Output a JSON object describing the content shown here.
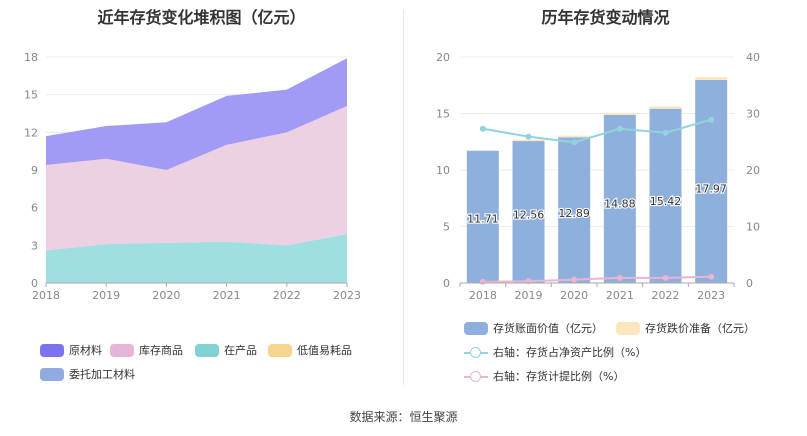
{
  "footer": {
    "source": "数据来源：恒生聚源"
  },
  "chart_data": [
    {
      "type": "area",
      "stacked": true,
      "title": "近年存货变化堆积图（亿元）",
      "categories": [
        "2018",
        "2019",
        "2020",
        "2021",
        "2022",
        "2023"
      ],
      "ylim": [
        0,
        18
      ],
      "yticks": [
        0,
        3,
        6,
        9,
        12,
        15,
        18
      ],
      "grid": true,
      "series": [
        {
          "name": "在产品",
          "color": "#9fdfe0",
          "values": [
            2.6,
            3.1,
            3.2,
            3.3,
            3.0,
            3.9
          ]
        },
        {
          "name": "库存商品",
          "color": "#eed0e3",
          "values": [
            6.8,
            6.8,
            5.8,
            7.7,
            9.0,
            10.2
          ]
        },
        {
          "name": "原材料",
          "color": "#a19bf5",
          "values": [
            2.3,
            2.6,
            3.8,
            3.9,
            3.4,
            3.8
          ]
        }
      ],
      "legend": [
        {
          "name": "原材料",
          "color": "#7b72ee"
        },
        {
          "name": "库存商品",
          "color": "#e4b5d8"
        },
        {
          "name": "在产品",
          "color": "#7fd3d4"
        },
        {
          "name": "低值易耗品",
          "color": "#f6d58f"
        },
        {
          "name": "委托加工材料",
          "color": "#8fabe0"
        }
      ]
    },
    {
      "type": "bar",
      "title": "历年存货变动情况",
      "categories": [
        "2018",
        "2019",
        "2020",
        "2021",
        "2022",
        "2023"
      ],
      "ylim": [
        0,
        20
      ],
      "yticks": [
        0,
        5,
        10,
        15,
        20
      ],
      "y2lim": [
        0,
        40
      ],
      "y2ticks": [
        0,
        10,
        20,
        30,
        40
      ],
      "grid": true,
      "series": [
        {
          "name": "存货账面价值（亿元）",
          "color": "#8fb0dc",
          "values": [
            11.71,
            12.56,
            12.89,
            14.88,
            15.42,
            17.97
          ],
          "labels": [
            "11.71",
            "12.56",
            "12.89",
            "14.88",
            "15.42",
            "17.97"
          ]
        },
        {
          "name": "存货跌价准备（亿元）",
          "color": "#fbe6c0",
          "values": [
            0.0,
            0.05,
            0.15,
            0.18,
            0.2,
            0.25
          ]
        },
        {
          "name": "右轴：存货占净资产比例（%）",
          "axis": "right",
          "color": "#8fd5db",
          "type": "line",
          "values": [
            27.3,
            25.9,
            24.9,
            27.3,
            26.6,
            28.9
          ]
        },
        {
          "name": "右轴：存货计提比例（%）",
          "axis": "right",
          "color": "#eab4d4",
          "type": "line",
          "values": [
            0.2,
            0.3,
            0.6,
            0.9,
            0.9,
            1.1
          ]
        }
      ],
      "legend": [
        {
          "name": "存货账面价值（亿元）",
          "color": "#8fb0dc",
          "kind": "box"
        },
        {
          "name": "存货跌价准备（亿元）",
          "color": "#fbe6c0",
          "kind": "box"
        },
        {
          "name": "右轴：存货占净资产比例（%）",
          "color": "#8fd5db",
          "kind": "line"
        },
        {
          "name": "右轴：存货计提比例（%）",
          "color": "#eab4d4",
          "kind": "line"
        }
      ]
    }
  ]
}
